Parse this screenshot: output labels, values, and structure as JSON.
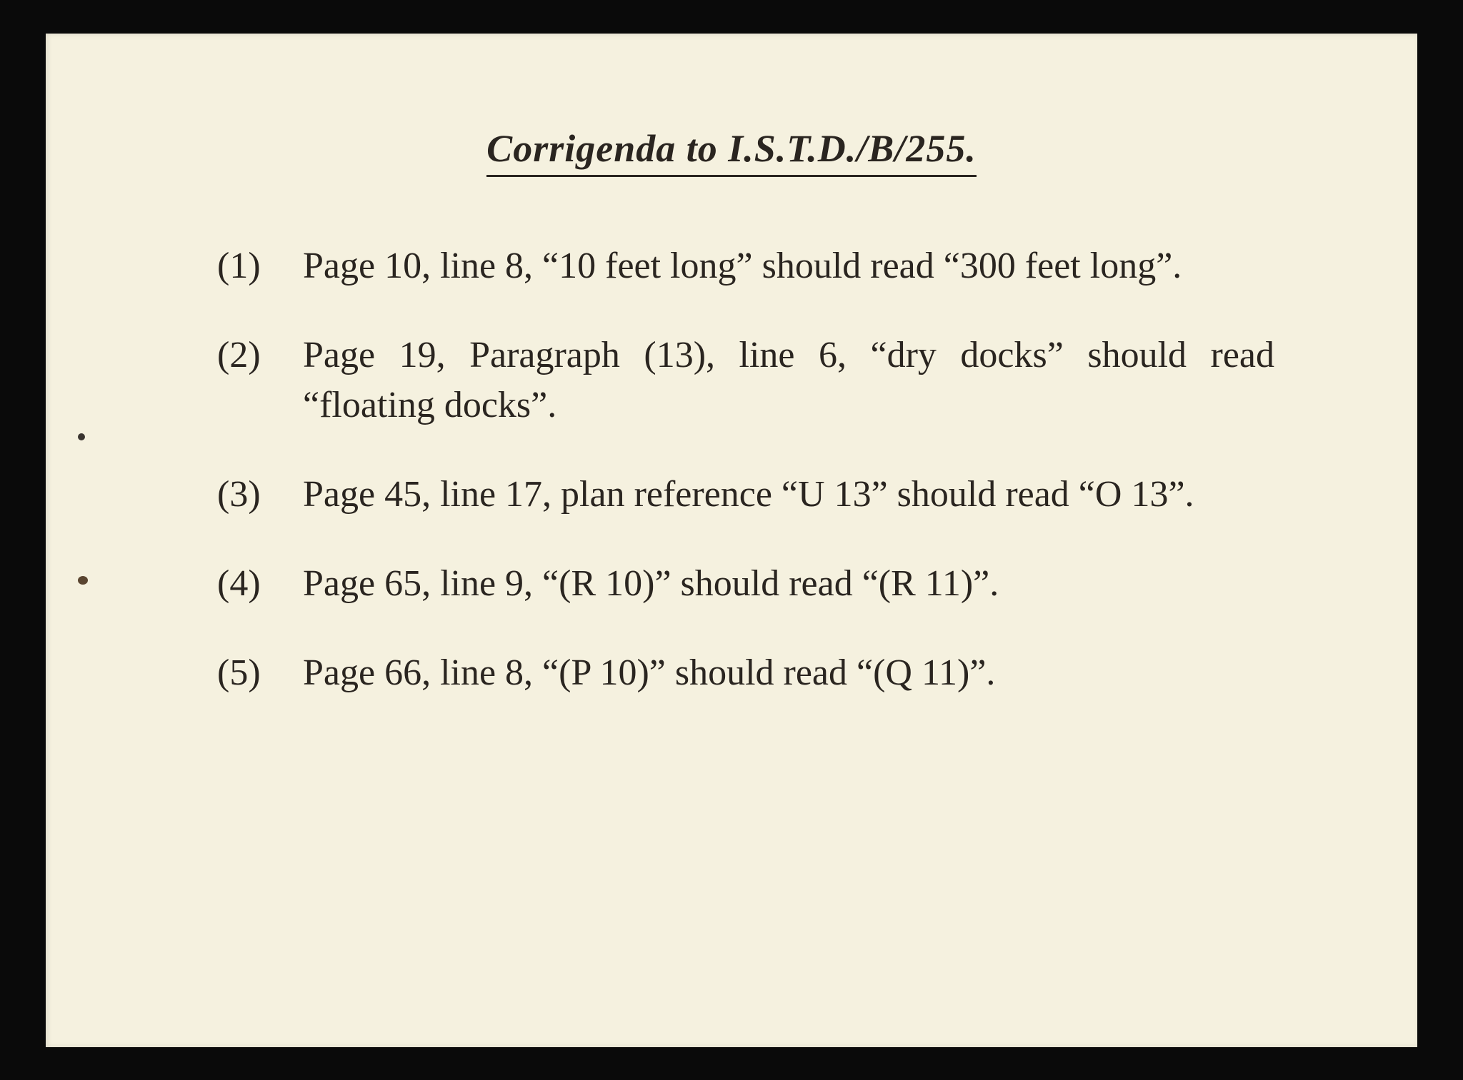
{
  "document": {
    "title": "Corrigenda to I.S.T.D./B/255.",
    "background_color": "#f5f1df",
    "text_color": "#2a2520",
    "title_fontsize": 54,
    "body_fontsize": 52,
    "items": [
      {
        "num": "(1)",
        "text": "Page 10, line 8, “10 feet long” should read “300 feet long”."
      },
      {
        "num": "(2)",
        "text": "Page 19, Paragraph (13), line 6, “dry docks” should read “floating docks”."
      },
      {
        "num": "(3)",
        "text": "Page 45, line 17, plan reference “U 13” should read “O 13”."
      },
      {
        "num": "(4)",
        "text": "Page 65, line 9, “(R 10)” should read “(R 11)”."
      },
      {
        "num": "(5)",
        "text": "Page 66, line 8, “(P 10)” should read “(Q 11)”."
      }
    ]
  }
}
